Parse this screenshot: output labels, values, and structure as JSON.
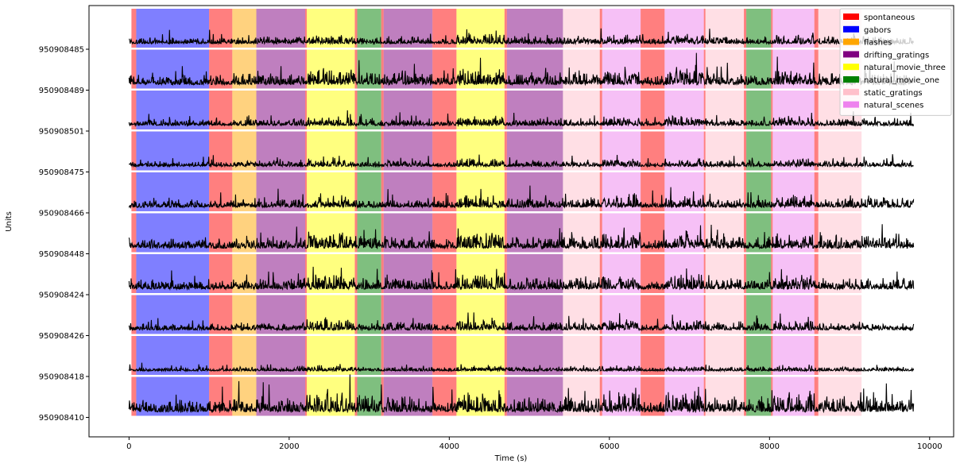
{
  "chart_data": {
    "type": "line",
    "title": "",
    "xlabel": "Time (s)",
    "ylabel": "Units",
    "xlim": [
      -500,
      10300
    ],
    "x_ticks": [
      0,
      2000,
      4000,
      6000,
      8000,
      10000
    ],
    "grid": false,
    "legend_position": "top-right",
    "stimulus_colors": {
      "spontaneous": "#ff0000",
      "gabors": "#0000ff",
      "flashes": "#ffa500",
      "drifting_gratings": "#800080",
      "natural_movie_three": "#ffff00",
      "natural_movie_one": "#008000",
      "static_gratings": "#ffc0cb",
      "natural_scenes": "#ee82ee"
    },
    "legend": [
      {
        "label": "spontaneous",
        "color": "#ff0000"
      },
      {
        "label": "gabors",
        "color": "#0000ff"
      },
      {
        "label": "flashes",
        "color": "#ffa500"
      },
      {
        "label": "drifting_gratings",
        "color": "#800080"
      },
      {
        "label": "natural_movie_three",
        "color": "#ffff00"
      },
      {
        "label": "natural_movie_one",
        "color": "#008000"
      },
      {
        "label": "static_gratings",
        "color": "#ffc0cb"
      },
      {
        "label": "natural_scenes",
        "color": "#ee82ee"
      }
    ],
    "epochs": [
      {
        "stimulus": "spontaneous",
        "start": 30,
        "end": 90
      },
      {
        "stimulus": "gabors",
        "start": 90,
        "end": 1000
      },
      {
        "stimulus": "spontaneous",
        "start": 1000,
        "end": 1290
      },
      {
        "stimulus": "flashes",
        "start": 1290,
        "end": 1590
      },
      {
        "stimulus": "drifting_gratings",
        "start": 1590,
        "end": 2200
      },
      {
        "stimulus": "spontaneous",
        "start": 2200,
        "end": 2220
      },
      {
        "stimulus": "natural_movie_three",
        "start": 2220,
        "end": 2820
      },
      {
        "stimulus": "spontaneous",
        "start": 2820,
        "end": 2850
      },
      {
        "stimulus": "natural_movie_one",
        "start": 2850,
        "end": 3150
      },
      {
        "stimulus": "spontaneous",
        "start": 3150,
        "end": 3180
      },
      {
        "stimulus": "drifting_gratings",
        "start": 3180,
        "end": 3790
      },
      {
        "stimulus": "spontaneous",
        "start": 3790,
        "end": 4090
      },
      {
        "stimulus": "natural_movie_three",
        "start": 4090,
        "end": 4690
      },
      {
        "stimulus": "spontaneous",
        "start": 4690,
        "end": 4720
      },
      {
        "stimulus": "drifting_gratings",
        "start": 4720,
        "end": 5420
      },
      {
        "stimulus": "static_gratings",
        "start": 5420,
        "end": 5880
      },
      {
        "stimulus": "spontaneous",
        "start": 5880,
        "end": 5910
      },
      {
        "stimulus": "natural_scenes",
        "start": 5910,
        "end": 6390
      },
      {
        "stimulus": "spontaneous",
        "start": 6390,
        "end": 6690
      },
      {
        "stimulus": "natural_scenes",
        "start": 6690,
        "end": 7180
      },
      {
        "stimulus": "spontaneous",
        "start": 7180,
        "end": 7200
      },
      {
        "stimulus": "static_gratings",
        "start": 7200,
        "end": 7680
      },
      {
        "stimulus": "spontaneous",
        "start": 7680,
        "end": 7710
      },
      {
        "stimulus": "natural_movie_one",
        "start": 7710,
        "end": 8020
      },
      {
        "stimulus": "spontaneous",
        "start": 8020,
        "end": 8040
      },
      {
        "stimulus": "natural_scenes",
        "start": 8040,
        "end": 8560
      },
      {
        "stimulus": "spontaneous",
        "start": 8560,
        "end": 8610
      },
      {
        "stimulus": "static_gratings",
        "start": 8610,
        "end": 9150
      }
    ],
    "trace_x_range": [
      0,
      9800
    ],
    "units": [
      {
        "id": "950908485",
        "amplitude": 0.35
      },
      {
        "id": "950908489",
        "amplitude": 0.6
      },
      {
        "id": "950908501",
        "amplitude": 0.35
      },
      {
        "id": "950908475",
        "amplitude": 0.3
      },
      {
        "id": "950908466",
        "amplitude": 0.45
      },
      {
        "id": "950908448",
        "amplitude": 0.6
      },
      {
        "id": "950908424",
        "amplitude": 0.55
      },
      {
        "id": "950908426",
        "amplitude": 0.4
      },
      {
        "id": "950908418",
        "amplitude": 0.2
      },
      {
        "id": "950908410",
        "amplitude": 0.75
      }
    ]
  }
}
